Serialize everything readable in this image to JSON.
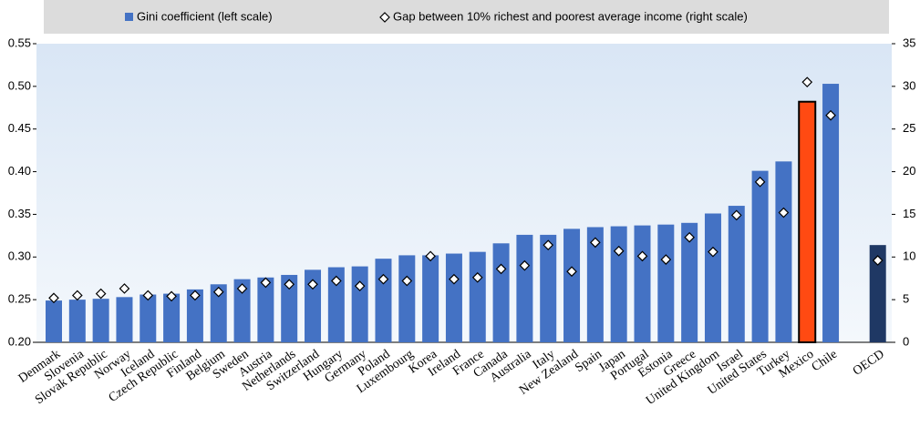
{
  "chart_data": {
    "type": "bar",
    "categories": [
      "Denmark",
      "Slovenia",
      "Slovak Republic",
      "Norway",
      "Iceland",
      "Czech Republic",
      "Finland",
      "Belgium",
      "Sweden",
      "Austria",
      "Netherlands",
      "Switzerland",
      "Hungary",
      "Germany",
      "Poland",
      "Luxembourg",
      "Korea",
      "Ireland",
      "France",
      "Canada",
      "Australia",
      "Italy",
      "New Zealand",
      "Spain",
      "Japan",
      "Portugal",
      "Estonia",
      "Greece",
      "United Kingdom",
      "Israel",
      "United States",
      "Turkey",
      "Mexico",
      "Chile",
      null,
      "OECD"
    ],
    "series": [
      {
        "name": "Gini coefficient (left scale)",
        "color": "#4472c4",
        "bar_colors": {
          "32": "#ff4a12",
          "35": "#1f3864"
        },
        "values": [
          0.249,
          0.25,
          0.251,
          0.253,
          0.256,
          0.257,
          0.262,
          0.268,
          0.274,
          0.276,
          0.279,
          0.285,
          0.288,
          0.289,
          0.298,
          0.302,
          0.302,
          0.304,
          0.306,
          0.316,
          0.326,
          0.326,
          0.333,
          0.335,
          0.336,
          0.337,
          0.338,
          0.34,
          0.351,
          0.36,
          0.401,
          0.412,
          0.482,
          0.503,
          null,
          0.314
        ]
      },
      {
        "name": "Gap between 10% richest and poorest average income (right scale)",
        "axis": "y2",
        "marker": "diamond",
        "color": "#ffffff",
        "values": [
          5.2,
          5.5,
          5.7,
          6.3,
          5.5,
          5.4,
          5.5,
          5.9,
          6.3,
          7.0,
          6.8,
          6.8,
          7.2,
          6.6,
          7.4,
          7.2,
          10.1,
          7.4,
          7.6,
          8.6,
          9.0,
          11.4,
          8.3,
          11.7,
          10.7,
          10.1,
          9.7,
          12.3,
          10.6,
          14.9,
          18.8,
          15.2,
          30.5,
          26.6,
          null,
          9.6
        ]
      }
    ],
    "ylim": [
      0.2,
      0.55
    ],
    "yticks": [
      {
        "value": 0.2,
        "label": "0.20"
      },
      0.25,
      {
        "value": 0.3,
        "label": "0.30"
      },
      0.35,
      {
        "value": 0.4,
        "label": "0.40"
      },
      0.45,
      {
        "value": 0.5,
        "label": "0.50"
      },
      0.55
    ],
    "y2lim": [
      0,
      35
    ],
    "y2ticks": [
      0,
      5,
      10,
      15,
      20,
      25,
      30,
      35
    ]
  }
}
